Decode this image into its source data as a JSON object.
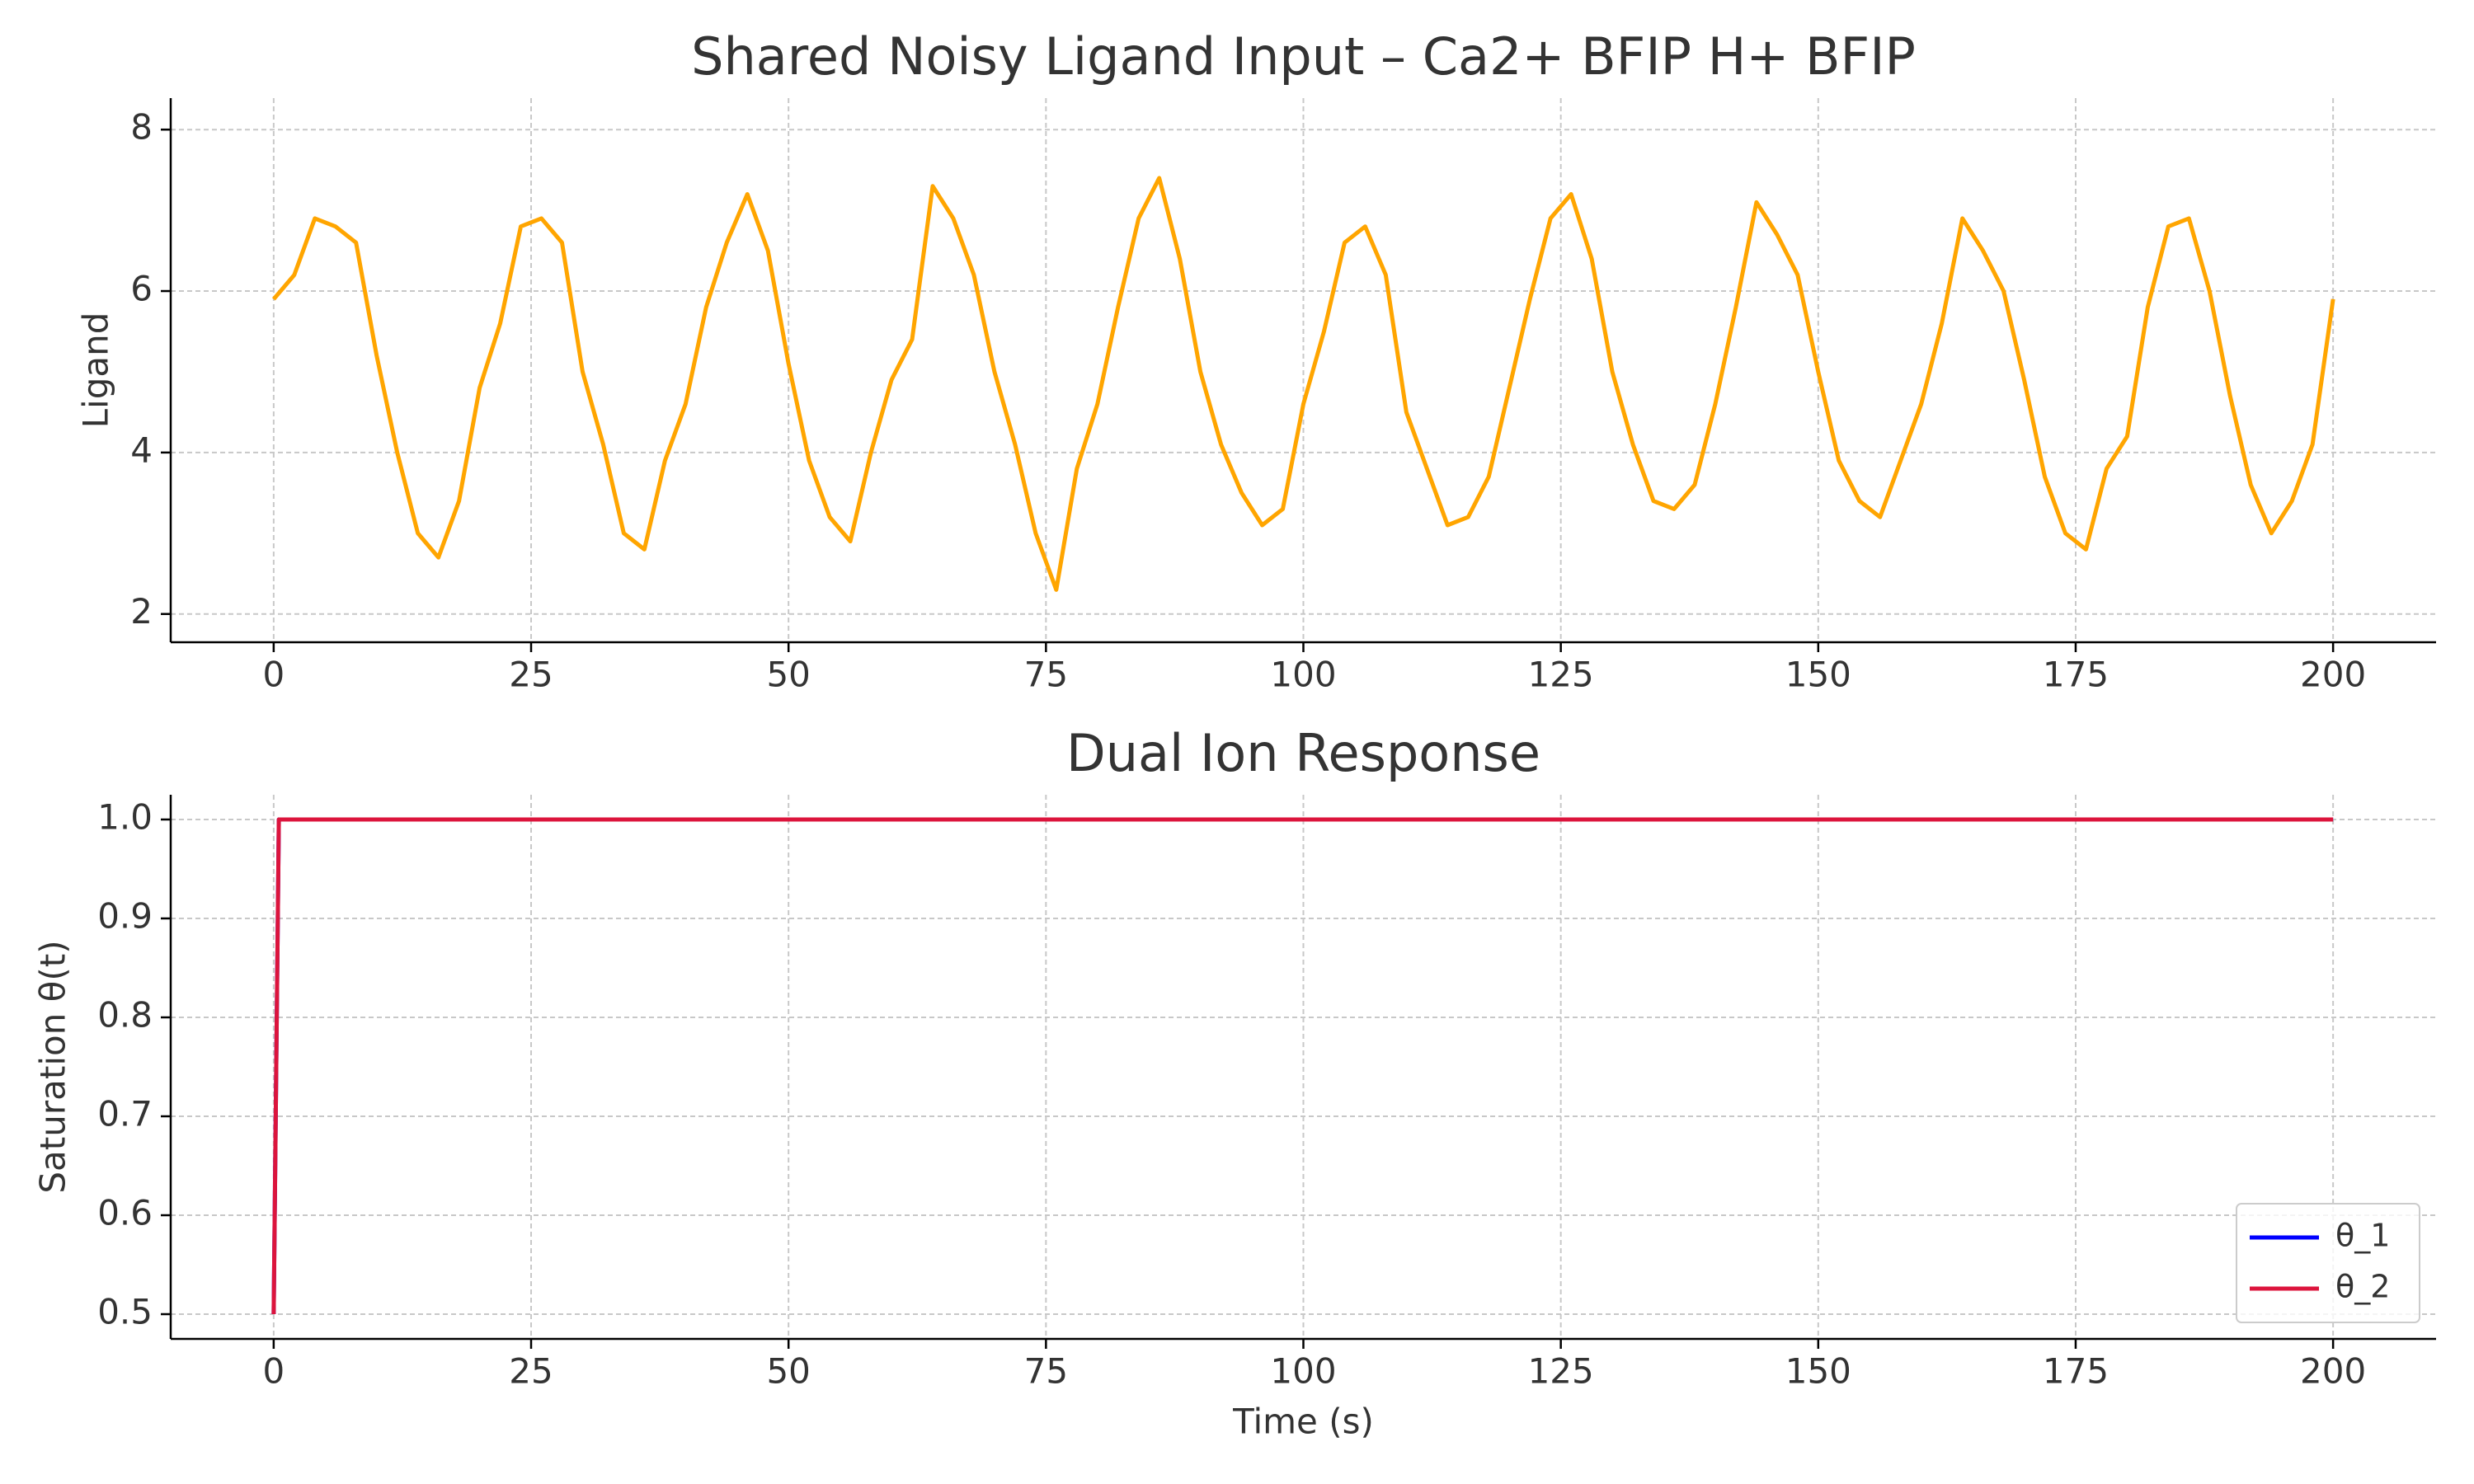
{
  "chart_data": [
    {
      "type": "line",
      "title": "Shared Noisy Ligand Input – Ca2+ BFIP H+ BFIP",
      "ylabel": "Ligand",
      "x": [
        0,
        2,
        4,
        6,
        8,
        10,
        12,
        14,
        16,
        18,
        20,
        22,
        24,
        26,
        28,
        30,
        32,
        34,
        36,
        38,
        40,
        42,
        44,
        46,
        48,
        50,
        52,
        54,
        56,
        58,
        60,
        62,
        64,
        66,
        68,
        70,
        72,
        74,
        76,
        78,
        80,
        82,
        84,
        86,
        88,
        90,
        92,
        94,
        96,
        98,
        100,
        102,
        104,
        106,
        108,
        110,
        112,
        114,
        116,
        118,
        120,
        122,
        124,
        126,
        128,
        130,
        132,
        134,
        136,
        138,
        140,
        142,
        144,
        146,
        148,
        150,
        152,
        154,
        156,
        158,
        160,
        162,
        164,
        166,
        168,
        170,
        172,
        174,
        176,
        178,
        180,
        182,
        184,
        186,
        188,
        190,
        192,
        194,
        196,
        198,
        200
      ],
      "values": [
        5.9,
        6.2,
        6.9,
        6.8,
        6.6,
        5.2,
        4.0,
        3.0,
        2.7,
        3.4,
        4.8,
        5.6,
        6.8,
        6.9,
        6.6,
        5.0,
        4.1,
        3.0,
        2.8,
        3.9,
        4.6,
        5.8,
        6.6,
        7.2,
        6.5,
        5.1,
        3.9,
        3.2,
        2.9,
        4.0,
        4.9,
        5.4,
        7.3,
        6.9,
        6.2,
        5.0,
        4.1,
        3.0,
        2.3,
        3.8,
        4.6,
        5.8,
        6.9,
        7.4,
        6.4,
        5.0,
        4.1,
        3.5,
        3.1,
        3.3,
        4.6,
        5.5,
        6.6,
        6.8,
        6.2,
        4.5,
        3.8,
        3.1,
        3.2,
        3.7,
        4.8,
        5.9,
        6.9,
        7.2,
        6.4,
        5.0,
        4.1,
        3.4,
        3.3,
        3.6,
        4.6,
        5.8,
        7.1,
        6.7,
        6.2,
        5.0,
        3.9,
        3.4,
        3.2,
        3.9,
        4.6,
        5.6,
        6.9,
        6.5,
        6.0,
        4.9,
        3.7,
        3.0,
        2.8,
        3.8,
        4.2,
        5.8,
        6.8,
        6.9,
        6.0,
        4.7,
        3.6,
        3.0,
        3.4,
        4.1,
        5.9
      ],
      "color": "#ffa500",
      "xlim": [
        -10,
        210
      ],
      "ylim": [
        1.65,
        8.39
      ],
      "xticks": [
        0,
        25,
        50,
        75,
        100,
        125,
        150,
        175,
        200
      ],
      "yticks": [
        2,
        4,
        6,
        8
      ],
      "grid": true
    },
    {
      "type": "line",
      "title": "Dual Ion Response",
      "xlabel": "Time (s)",
      "ylabel": "Saturation θ(t)",
      "x": [
        0,
        0.5,
        200
      ],
      "series": [
        {
          "name": "θ_1",
          "color": "#0000ff",
          "values": [
            0.5,
            1.0,
            1.0
          ]
        },
        {
          "name": "θ_2",
          "color": "#dc143c",
          "values": [
            0.5,
            1.0,
            1.0
          ]
        }
      ],
      "xlim": [
        -10,
        210
      ],
      "ylim": [
        0.475,
        1.025
      ],
      "xticks": [
        0,
        25,
        50,
        75,
        100,
        125,
        150,
        175,
        200
      ],
      "yticks": [
        0.5,
        0.6,
        0.7,
        0.8,
        0.9,
        {
          "value": 1,
          "label": "1.0"
        }
      ],
      "grid": true,
      "legend": "lower right"
    }
  ]
}
